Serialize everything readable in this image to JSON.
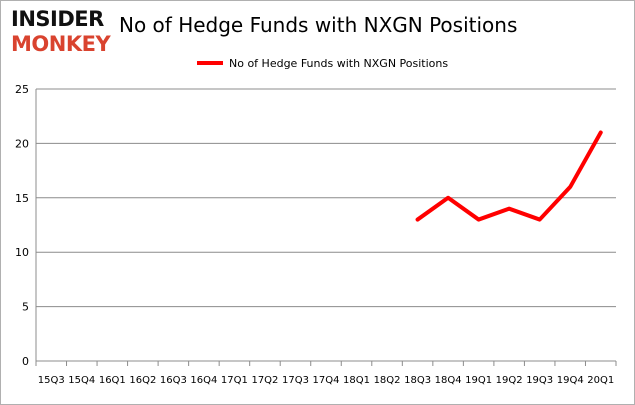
{
  "logo": {
    "line1": "INSIDER",
    "line2": "MONKEY"
  },
  "chart_data": {
    "type": "line",
    "title": "No of Hedge Funds with NXGN Positions",
    "xlabel": "",
    "ylabel": "",
    "categories": [
      "15Q3",
      "15Q4",
      "16Q1",
      "16Q2",
      "16Q3",
      "16Q4",
      "17Q1",
      "17Q2",
      "17Q3",
      "17Q4",
      "18Q1",
      "18Q2",
      "18Q3",
      "18Q4",
      "19Q1",
      "19Q2",
      "19Q3",
      "19Q4",
      "20Q1"
    ],
    "series": [
      {
        "name": "No of Hedge Funds with NXGN Positions",
        "color": "#ff0000",
        "values": [
          null,
          null,
          null,
          null,
          null,
          null,
          null,
          null,
          null,
          null,
          null,
          null,
          13,
          15,
          13,
          14,
          13,
          16,
          21
        ]
      }
    ],
    "ylim": [
      0,
      25
    ],
    "yticks": [
      0,
      5,
      10,
      15,
      20,
      25
    ],
    "grid": true,
    "legend": "top-center"
  }
}
